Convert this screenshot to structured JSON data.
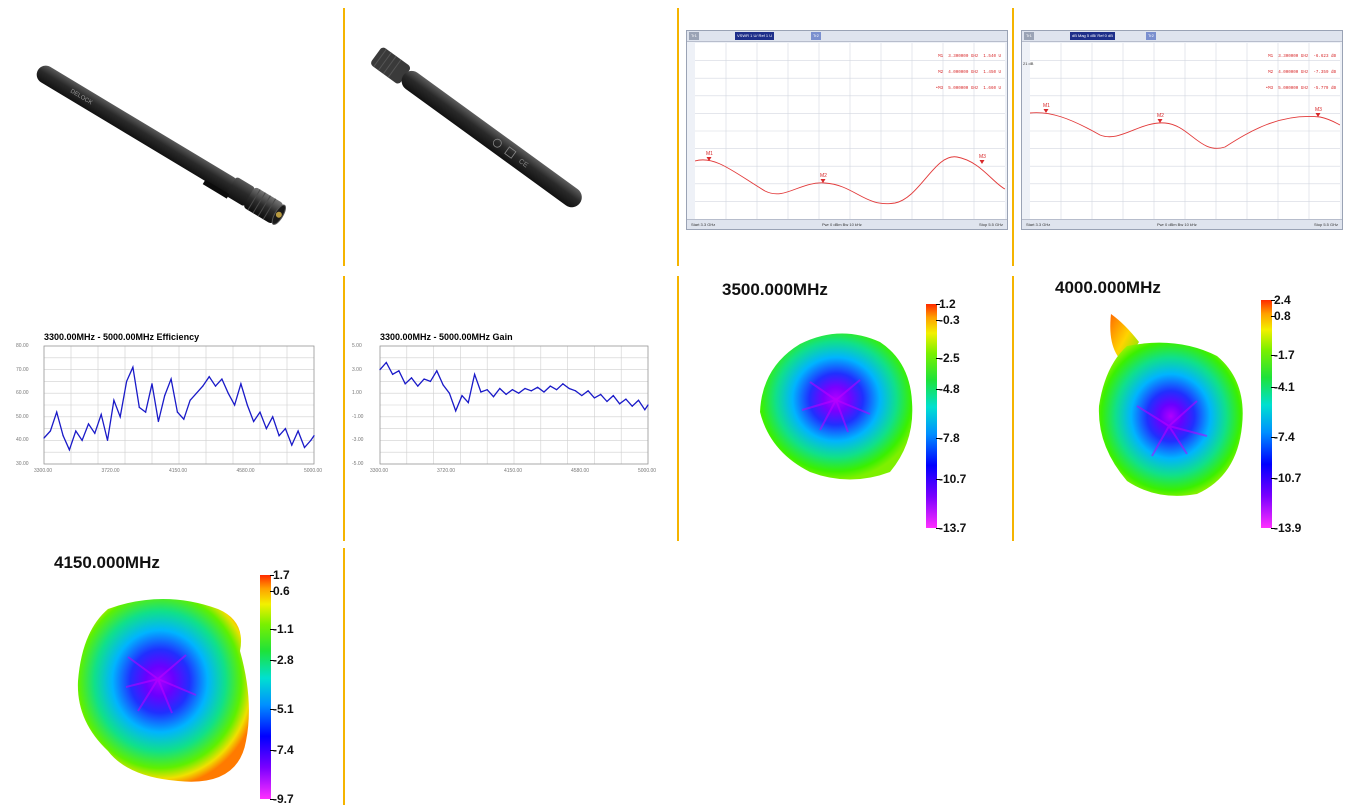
{
  "antenna_photos": [
    {
      "brand_text": "DELOCK",
      "view": "side"
    },
    {
      "brand_text": "",
      "view": "back"
    }
  ],
  "vna": [
    {
      "tab_left": "Tr1",
      "tab_main": "VSWR 1 U/ Ref 1 U",
      "tab_right": "Tr2",
      "markers": [
        "M1  3.300000 GHz  1.540 U",
        "M2  4.000000 GHz  1.450 U",
        "•M3  5.000000 GHz  1.660 U"
      ],
      "marker_names": [
        "M1",
        "M2",
        "M3"
      ],
      "start": "Start 3.3 GHz",
      "mid": "Pwr 0 dBm  Bw 10 kHz",
      "stop": "Stop 5.5 GHz",
      "trace_values": [
        1.54,
        1.46,
        1.45,
        1.66
      ]
    },
    {
      "tab_left": "Tr1",
      "tab_main": "dB Mag 5 dB/ Ref 0 dB",
      "tab_right": "Tr2",
      "markers": [
        "M1  3.300000 GHz  -6.623 dB",
        "M2  4.000000 GHz  -7.359 dB",
        "•M3  5.000000 GHz  -5.779 dB"
      ],
      "marker_names": [
        "M1",
        "M2",
        "M3"
      ],
      "start": "Start 3.3 GHz",
      "mid": "Pwr 0 dBm  Bw 10 kHz",
      "stop": "Stop 5.5 GHz",
      "ref_label": "21 dB"
    }
  ],
  "efficiency_chart": {
    "title": "3300.00MHz - 5000.00MHz Efficiency",
    "y_ticks": [
      "80.00",
      "70.00",
      "60.00",
      "50.00",
      "40.00",
      "30.00"
    ],
    "x_ticks": [
      "3300.00",
      "3720.00",
      "4150.00",
      "4580.00",
      "5000.00"
    ]
  },
  "gain_chart": {
    "title": "3300.00MHz - 5000.00MHz Gain",
    "y_ticks": [
      "5.00",
      "3.00",
      "1.00",
      "-1.00",
      "-3.00",
      "-5.00"
    ],
    "x_ticks": [
      "3300.00",
      "3720.00",
      "4150.00",
      "4580.00",
      "5000.00"
    ]
  },
  "chart_data": [
    {
      "type": "line",
      "title": "3300.00MHz - 5000.00MHz Efficiency",
      "xlabel": "",
      "ylabel": "",
      "xlim": [
        3300,
        5000
      ],
      "ylim": [
        30,
        80
      ],
      "grid": true,
      "color": "#1a1ac8",
      "x": [
        3300,
        3340,
        3380,
        3420,
        3460,
        3500,
        3540,
        3580,
        3620,
        3660,
        3700,
        3740,
        3780,
        3820,
        3860,
        3900,
        3940,
        3980,
        4020,
        4060,
        4100,
        4140,
        4180,
        4220,
        4260,
        4300,
        4340,
        4380,
        4420,
        4460,
        4500,
        4540,
        4580,
        4620,
        4660,
        4700,
        4740,
        4780,
        4820,
        4860,
        4900,
        4940,
        4980,
        5000
      ],
      "y": [
        41,
        44,
        52,
        42,
        36,
        44,
        40,
        47,
        43,
        51,
        40,
        57,
        50,
        65,
        71,
        54,
        52,
        64,
        48,
        59,
        66,
        52,
        49,
        57,
        60,
        63,
        67,
        63,
        66,
        60,
        55,
        64,
        55,
        48,
        52,
        45,
        50,
        42,
        45,
        38,
        44,
        37,
        40,
        42
      ]
    },
    {
      "type": "line",
      "title": "3300.00MHz - 5000.00MHz Gain",
      "xlabel": "",
      "ylabel": "",
      "xlim": [
        3300,
        5000
      ],
      "ylim": [
        -5,
        5
      ],
      "grid": true,
      "color": "#1a1ac8",
      "x": [
        3300,
        3340,
        3380,
        3420,
        3460,
        3500,
        3540,
        3580,
        3620,
        3660,
        3700,
        3740,
        3780,
        3820,
        3860,
        3900,
        3940,
        3980,
        4020,
        4060,
        4100,
        4140,
        4180,
        4220,
        4260,
        4300,
        4340,
        4380,
        4420,
        4460,
        4500,
        4540,
        4580,
        4620,
        4660,
        4700,
        4740,
        4780,
        4820,
        4860,
        4900,
        4940,
        4980,
        5000
      ],
      "y": [
        3.0,
        3.6,
        2.6,
        2.9,
        1.8,
        2.3,
        1.6,
        2.2,
        2.0,
        2.9,
        1.7,
        1.0,
        -0.5,
        0.8,
        0.2,
        2.6,
        1.1,
        1.3,
        0.7,
        1.4,
        0.9,
        1.3,
        1.0,
        1.4,
        1.2,
        1.5,
        1.1,
        1.6,
        1.3,
        1.8,
        1.4,
        1.2,
        0.8,
        1.2,
        0.6,
        0.9,
        0.3,
        0.8,
        0.1,
        0.5,
        -0.1,
        0.4,
        -0.4,
        0.0
      ]
    }
  ],
  "patterns": [
    {
      "title": "3500.000MHz",
      "scale": [
        "1.2",
        "-0.3",
        "-2.5",
        "-4.8",
        "-7.8",
        "-10.7",
        "-13.7"
      ]
    },
    {
      "title": "4000.000MHz",
      "scale": [
        "2.4",
        "0.8",
        "-1.7",
        "-4.1",
        "-7.4",
        "-10.7",
        "-13.9"
      ]
    },
    {
      "title": "4150.000MHz",
      "scale": [
        "1.7",
        "0.6",
        "-1.1",
        "-2.8",
        "-5.1",
        "-7.4",
        "-9.7"
      ]
    }
  ],
  "colors": {
    "divider": "#f5b400",
    "trace": "#1a1ac8",
    "vna_trace": "#e23a3a"
  }
}
